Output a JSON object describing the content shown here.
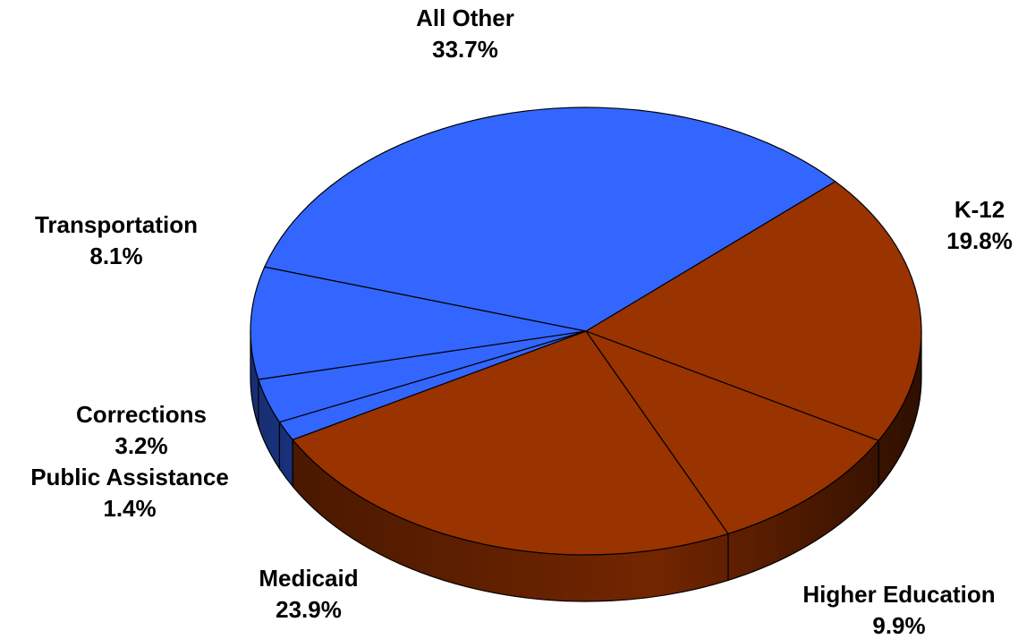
{
  "chart_data": {
    "type": "pie",
    "categories": [
      "K-12",
      "Higher Education",
      "Medicaid",
      "Public Assistance",
      "Corrections",
      "Transportation",
      "All Other"
    ],
    "values": [
      19.8,
      9.9,
      23.9,
      1.4,
      3.2,
      8.1,
      33.7
    ],
    "value_labels": [
      "19.8%",
      "9.9%",
      "23.9%",
      "1.4%",
      "3.2%",
      "8.1%",
      "33.7%"
    ],
    "colors": [
      "#993300",
      "#993300",
      "#993300",
      "#3366ff",
      "#3366ff",
      "#3366ff",
      "#3366ff"
    ],
    "three_d": true
  }
}
